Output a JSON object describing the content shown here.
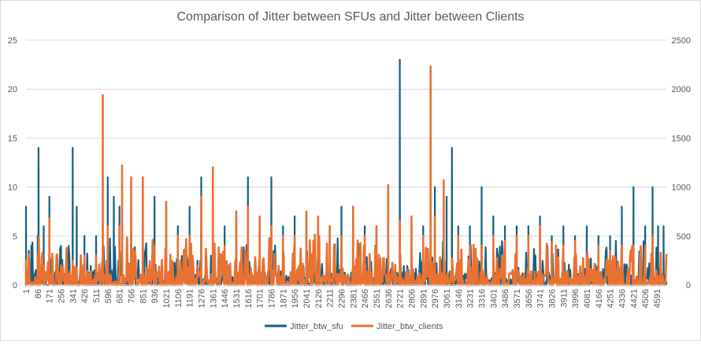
{
  "chart_data": {
    "type": "line",
    "title": "Comparison of Jitter between SFUs and Jitter between Clients",
    "xlabel": "",
    "ylabel": "",
    "x_start": 1,
    "x_end": 4660,
    "x_tick_labels": [
      "1",
      "86",
      "171",
      "256",
      "341",
      "426",
      "511",
      "596",
      "681",
      "766",
      "851",
      "936",
      "1021",
      "1106",
      "1191",
      "1276",
      "1361",
      "1446",
      "1531",
      "1616",
      "1701",
      "1786",
      "1871",
      "1956",
      "2041",
      "2126",
      "2211",
      "2296",
      "2381",
      "2466",
      "2551",
      "2636",
      "2721",
      "2806",
      "2891",
      "2976",
      "3061",
      "3146",
      "3231",
      "3316",
      "3401",
      "3486",
      "3571",
      "3656",
      "3741",
      "3826",
      "3911",
      "3996",
      "4081",
      "4166",
      "4251",
      "4336",
      "4421",
      "4506",
      "4591"
    ],
    "y_left": {
      "min": 0,
      "max": 25,
      "ticks": [
        "0",
        "5",
        "10",
        "15",
        "20",
        "25"
      ]
    },
    "y_right": {
      "min": 0,
      "max": 2500,
      "ticks": [
        "0",
        "500",
        "1000",
        "1500",
        "2000",
        "2500"
      ]
    },
    "grid": true,
    "legend_position": "bottom",
    "series": [
      {
        "name": "Jitter_btw_sfu",
        "color": "#156082",
        "axis": "left",
        "peaks": [
          {
            "x": 1,
            "y": 8
          },
          {
            "x": 40,
            "y": 4
          },
          {
            "x": 86,
            "y": 5
          },
          {
            "x": 92,
            "y": 14
          },
          {
            "x": 130,
            "y": 6
          },
          {
            "x": 171,
            "y": 9
          },
          {
            "x": 256,
            "y": 4
          },
          {
            "x": 341,
            "y": 14
          },
          {
            "x": 370,
            "y": 8
          },
          {
            "x": 426,
            "y": 5
          },
          {
            "x": 511,
            "y": 5
          },
          {
            "x": 596,
            "y": 11
          },
          {
            "x": 640,
            "y": 9
          },
          {
            "x": 681,
            "y": 8
          },
          {
            "x": 766,
            "y": 7
          },
          {
            "x": 851,
            "y": 8
          },
          {
            "x": 936,
            "y": 9
          },
          {
            "x": 1021,
            "y": 8
          },
          {
            "x": 1106,
            "y": 6
          },
          {
            "x": 1191,
            "y": 8
          },
          {
            "x": 1276,
            "y": 11
          },
          {
            "x": 1361,
            "y": 5
          },
          {
            "x": 1446,
            "y": 6
          },
          {
            "x": 1531,
            "y": 7
          },
          {
            "x": 1616,
            "y": 11
          },
          {
            "x": 1701,
            "y": 6
          },
          {
            "x": 1786,
            "y": 11
          },
          {
            "x": 1871,
            "y": 6
          },
          {
            "x": 1956,
            "y": 7
          },
          {
            "x": 2041,
            "y": 6
          },
          {
            "x": 2126,
            "y": 6
          },
          {
            "x": 2211,
            "y": 6
          },
          {
            "x": 2296,
            "y": 8
          },
          {
            "x": 2381,
            "y": 7
          },
          {
            "x": 2466,
            "y": 6
          },
          {
            "x": 2551,
            "y": 6
          },
          {
            "x": 2636,
            "y": 9
          },
          {
            "x": 2721,
            "y": 23
          },
          {
            "x": 2806,
            "y": 6
          },
          {
            "x": 2891,
            "y": 6
          },
          {
            "x": 2976,
            "y": 10
          },
          {
            "x": 3061,
            "y": 9
          },
          {
            "x": 3100,
            "y": 14
          },
          {
            "x": 3146,
            "y": 6
          },
          {
            "x": 3231,
            "y": 6
          },
          {
            "x": 3316,
            "y": 10
          },
          {
            "x": 3401,
            "y": 7
          },
          {
            "x": 3486,
            "y": 6
          },
          {
            "x": 3571,
            "y": 6
          },
          {
            "x": 3656,
            "y": 6
          },
          {
            "x": 3741,
            "y": 7
          },
          {
            "x": 3826,
            "y": 5
          },
          {
            "x": 3911,
            "y": 6
          },
          {
            "x": 3996,
            "y": 5
          },
          {
            "x": 4081,
            "y": 6
          },
          {
            "x": 4166,
            "y": 5
          },
          {
            "x": 4251,
            "y": 5
          },
          {
            "x": 4336,
            "y": 8
          },
          {
            "x": 4421,
            "y": 10
          },
          {
            "x": 4506,
            "y": 6
          },
          {
            "x": 4560,
            "y": 10
          },
          {
            "x": 4600,
            "y": 6
          },
          {
            "x": 4640,
            "y": 6
          }
        ]
      },
      {
        "name": "Jitter_btw_clients",
        "color": "#E97132",
        "axis": "right",
        "peaks": [
          {
            "x": 1,
            "y": 250
          },
          {
            "x": 86,
            "y": 300
          },
          {
            "x": 171,
            "y": 680
          },
          {
            "x": 256,
            "y": 200
          },
          {
            "x": 341,
            "y": 250
          },
          {
            "x": 426,
            "y": 300
          },
          {
            "x": 511,
            "y": 300
          },
          {
            "x": 560,
            "y": 1940
          },
          {
            "x": 596,
            "y": 600
          },
          {
            "x": 681,
            "y": 600
          },
          {
            "x": 700,
            "y": 1220
          },
          {
            "x": 766,
            "y": 1100
          },
          {
            "x": 851,
            "y": 1100
          },
          {
            "x": 936,
            "y": 400
          },
          {
            "x": 1021,
            "y": 850
          },
          {
            "x": 1106,
            "y": 500
          },
          {
            "x": 1191,
            "y": 500
          },
          {
            "x": 1276,
            "y": 900
          },
          {
            "x": 1361,
            "y": 1200
          },
          {
            "x": 1446,
            "y": 400
          },
          {
            "x": 1531,
            "y": 750
          },
          {
            "x": 1616,
            "y": 800
          },
          {
            "x": 1701,
            "y": 700
          },
          {
            "x": 1786,
            "y": 600
          },
          {
            "x": 1871,
            "y": 500
          },
          {
            "x": 1956,
            "y": 500
          },
          {
            "x": 2041,
            "y": 750
          },
          {
            "x": 2126,
            "y": 700
          },
          {
            "x": 2211,
            "y": 600
          },
          {
            "x": 2296,
            "y": 500
          },
          {
            "x": 2381,
            "y": 800
          },
          {
            "x": 2466,
            "y": 500
          },
          {
            "x": 2551,
            "y": 600
          },
          {
            "x": 2636,
            "y": 1020
          },
          {
            "x": 2721,
            "y": 650
          },
          {
            "x": 2806,
            "y": 700
          },
          {
            "x": 2891,
            "y": 500
          },
          {
            "x": 2945,
            "y": 2230
          },
          {
            "x": 2976,
            "y": 700
          },
          {
            "x": 3040,
            "y": 1070
          },
          {
            "x": 3146,
            "y": 500
          },
          {
            "x": 3231,
            "y": 400
          },
          {
            "x": 3316,
            "y": 400
          },
          {
            "x": 3401,
            "y": 500
          },
          {
            "x": 3486,
            "y": 450
          },
          {
            "x": 3571,
            "y": 500
          },
          {
            "x": 3656,
            "y": 500
          },
          {
            "x": 3741,
            "y": 600
          },
          {
            "x": 3826,
            "y": 400
          },
          {
            "x": 3911,
            "y": 400
          },
          {
            "x": 3996,
            "y": 450
          },
          {
            "x": 4081,
            "y": 300
          },
          {
            "x": 4166,
            "y": 400
          },
          {
            "x": 4251,
            "y": 350
          },
          {
            "x": 4336,
            "y": 400
          },
          {
            "x": 4421,
            "y": 400
          },
          {
            "x": 4506,
            "y": 400
          },
          {
            "x": 4560,
            "y": 500
          },
          {
            "x": 4620,
            "y": 300
          }
        ]
      }
    ]
  }
}
